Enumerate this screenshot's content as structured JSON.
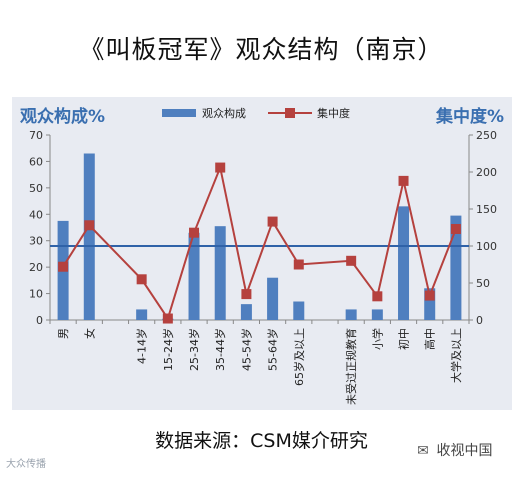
{
  "title": "《叫板冠军》观众结构（南京）",
  "source": "数据来源：CSM媒介研究",
  "watermark_left": "大众传播",
  "watermark_right": "收视中国",
  "chart_data": {
    "type": "bar+line",
    "left_axis_title": "观众构成%",
    "right_axis_title": "集中度%",
    "left_ylim": [
      0,
      70
    ],
    "left_ticks": [
      0,
      10,
      20,
      30,
      40,
      50,
      60,
      70
    ],
    "right_ylim": [
      0,
      250
    ],
    "right_ticks": [
      0,
      50,
      100,
      150,
      200,
      250
    ],
    "reference_line": 100,
    "grid": false,
    "legend_position": "top",
    "categories": [
      "男",
      "女",
      "",
      "4-14岁",
      "15-24岁",
      "25-34岁",
      "35-44岁",
      "45-54岁",
      "55-64岁",
      "65岁及以上",
      "",
      "未受过正规教育",
      "小学",
      "初中",
      "高中",
      "大学及以上"
    ],
    "series": [
      {
        "name": "观众构成",
        "type": "bar",
        "axis": "left",
        "color": "#4f7fbf",
        "values": [
          37.5,
          63,
          null,
          4,
          0.5,
          33,
          35.5,
          6,
          16,
          7,
          null,
          4,
          4,
          43,
          12,
          39.5
        ]
      },
      {
        "name": "集中度",
        "type": "line",
        "axis": "right",
        "color": "#b5413e",
        "values": [
          72,
          128,
          null,
          55,
          2,
          118,
          206,
          35,
          133,
          75,
          null,
          80,
          32,
          188,
          33,
          123
        ]
      }
    ]
  }
}
